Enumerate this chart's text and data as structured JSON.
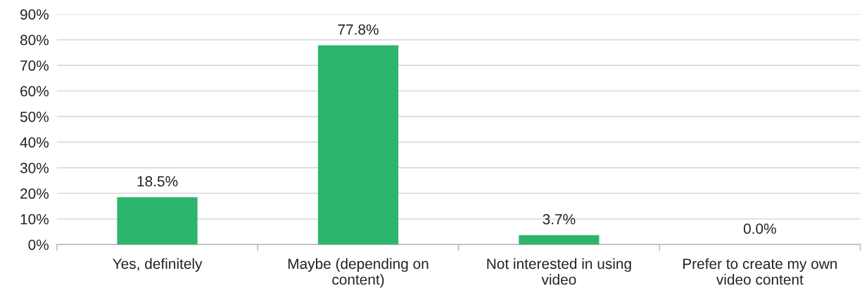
{
  "chart_data": {
    "type": "bar",
    "categories": [
      "Yes, definitely",
      "Maybe (depending on\ncontent)",
      "Not interested in using\nvideo",
      "Prefer to create my own\nvideo content"
    ],
    "values": [
      18.5,
      77.8,
      3.7,
      0.0
    ],
    "value_labels": [
      "18.5%",
      "77.8%",
      "3.7%",
      "0.0%"
    ],
    "color": "#2db56e",
    "ylim": [
      0,
      90
    ],
    "yticks": [
      {
        "value": 0,
        "label": "0%"
      },
      {
        "value": 10,
        "label": "10%"
      },
      {
        "value": 20,
        "label": "20%"
      },
      {
        "value": 30,
        "label": "30%"
      },
      {
        "value": 40,
        "label": "40%"
      },
      {
        "value": 50,
        "label": "50%"
      },
      {
        "value": 60,
        "label": "60%"
      },
      {
        "value": 70,
        "label": "70%"
      },
      {
        "value": 80,
        "label": "80%"
      },
      {
        "value": 90,
        "label": "90%"
      }
    ],
    "grid": "y",
    "legend": false
  }
}
